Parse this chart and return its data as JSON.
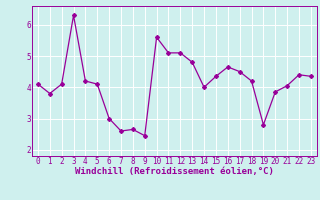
{
  "x": [
    0,
    1,
    2,
    3,
    4,
    5,
    6,
    7,
    8,
    9,
    10,
    11,
    12,
    13,
    14,
    15,
    16,
    17,
    18,
    19,
    20,
    21,
    22,
    23
  ],
  "y": [
    4.1,
    3.8,
    4.1,
    6.3,
    4.2,
    4.1,
    3.0,
    2.6,
    2.65,
    2.45,
    5.6,
    5.1,
    5.1,
    4.8,
    4.0,
    4.35,
    4.65,
    4.5,
    4.2,
    2.8,
    3.85,
    4.05,
    4.4,
    4.35
  ],
  "line_color": "#990099",
  "marker": "D",
  "markersize": 2.0,
  "linewidth": 0.9,
  "xlabel": "Windchill (Refroidissement éolien,°C)",
  "xlabel_color": "#990099",
  "background_color": "#cff0ee",
  "grid_color": "#ffffff",
  "ylim": [
    1.8,
    6.6
  ],
  "xlim": [
    -0.5,
    23.5
  ],
  "yticks": [
    2,
    3,
    4,
    5,
    6
  ],
  "xticks": [
    0,
    1,
    2,
    3,
    4,
    5,
    6,
    7,
    8,
    9,
    10,
    11,
    12,
    13,
    14,
    15,
    16,
    17,
    18,
    19,
    20,
    21,
    22,
    23
  ],
  "tick_label_fontsize": 5.5,
  "xlabel_fontsize": 6.5,
  "spine_color": "#990099"
}
